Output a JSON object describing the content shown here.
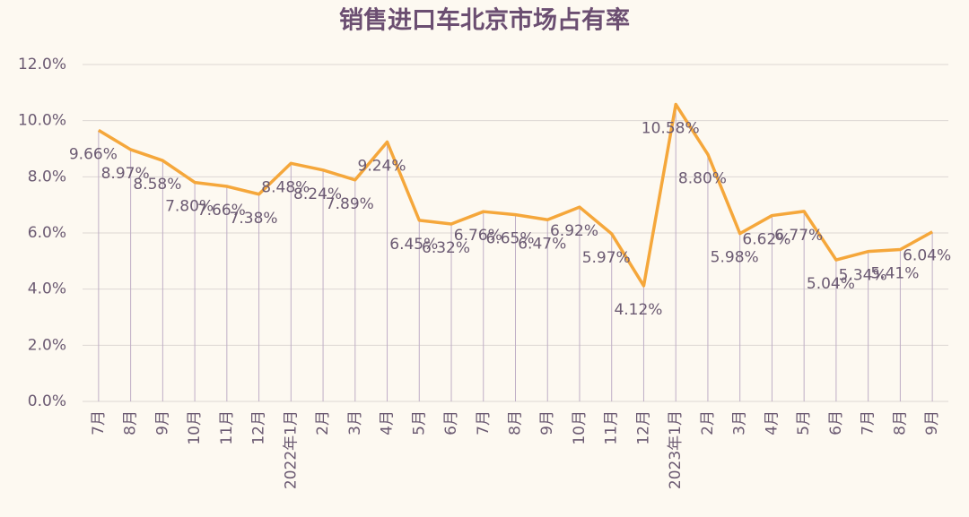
{
  "chart_data": {
    "type": "line",
    "title": "销售进口车北京市场占有率",
    "categories": [
      "7月",
      "8月",
      "9月",
      "10月",
      "11月",
      "12月",
      "2022年1月",
      "2月",
      "3月",
      "4月",
      "5月",
      "6月",
      "7月",
      "8月",
      "9月",
      "10月",
      "11月",
      "12月",
      "2023年1月",
      "2月",
      "3月",
      "4月",
      "5月",
      "6月",
      "7月",
      "8月",
      "9月"
    ],
    "series": [
      {
        "name": null,
        "color": "#f5a73b",
        "values": [
          9.66,
          8.97,
          8.58,
          7.8,
          7.66,
          7.38,
          8.48,
          8.24,
          7.89,
          9.24,
          6.45,
          6.32,
          6.76,
          6.65,
          6.47,
          6.92,
          5.97,
          4.12,
          10.58,
          8.8,
          5.98,
          6.62,
          6.77,
          5.04,
          5.34,
          5.41,
          6.04
        ],
        "value_labels": [
          "9.66%",
          "8.97%",
          "8.58%",
          "7.80%",
          "7.66%",
          "7.38%",
          "8.48%",
          "8.24%",
          "7.89%",
          "9.24%",
          "6.45%",
          "6.32%",
          "6.76%",
          "6.65%",
          "6.47%",
          "6.92%",
          "5.97%",
          "4.12%",
          "10.58%",
          "8.80%",
          "5.98%",
          "6.62%",
          "6.77%",
          "5.04%",
          "5.34%",
          "5.41%",
          "6.04%"
        ]
      }
    ],
    "ylim": [
      0,
      12
    ],
    "yticks": [
      {
        "value": 0,
        "label": "0.0%"
      },
      {
        "value": 2,
        "label": "2.0%"
      },
      {
        "value": 4,
        "label": "4.0%"
      },
      {
        "value": 6,
        "label": "6.0%"
      },
      {
        "value": 8,
        "label": "8.0%"
      },
      {
        "value": 10,
        "label": "10.0%"
      },
      {
        "value": 12,
        "label": "12.0%"
      }
    ],
    "grid": true,
    "drop_lines": true
  }
}
